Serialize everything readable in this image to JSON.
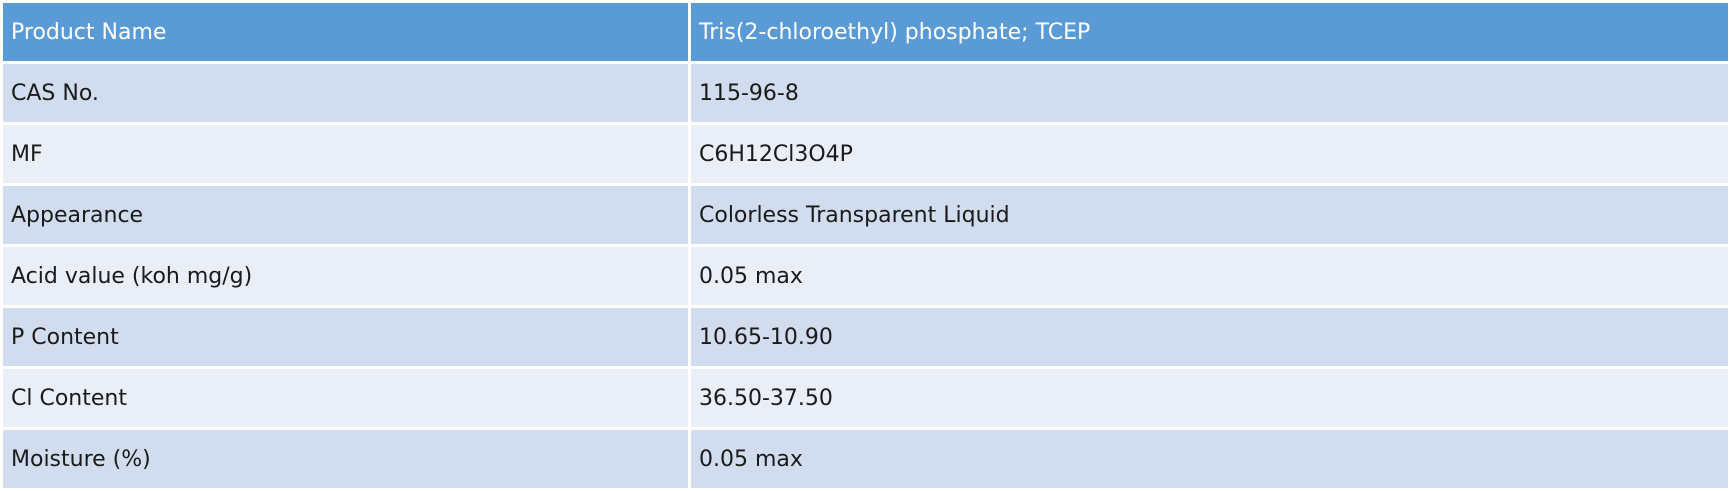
{
  "table": {
    "header": [
      "Product Name",
      "Tris(2-chloroethyl) phosphate; TCEP"
    ],
    "rows": [
      [
        "CAS No.",
        "115-96-8"
      ],
      [
        "MF",
        "C6H12Cl3O4P"
      ],
      [
        "Appearance",
        "Colorless Transparent Liquid"
      ],
      [
        "Acid value (koh mg/g)",
        "0.05 max"
      ],
      [
        "P Content",
        "10.65-10.90"
      ],
      [
        "Cl Content",
        "36.50-37.50"
      ],
      [
        "Moisture (%)",
        "0.05 max"
      ]
    ]
  }
}
